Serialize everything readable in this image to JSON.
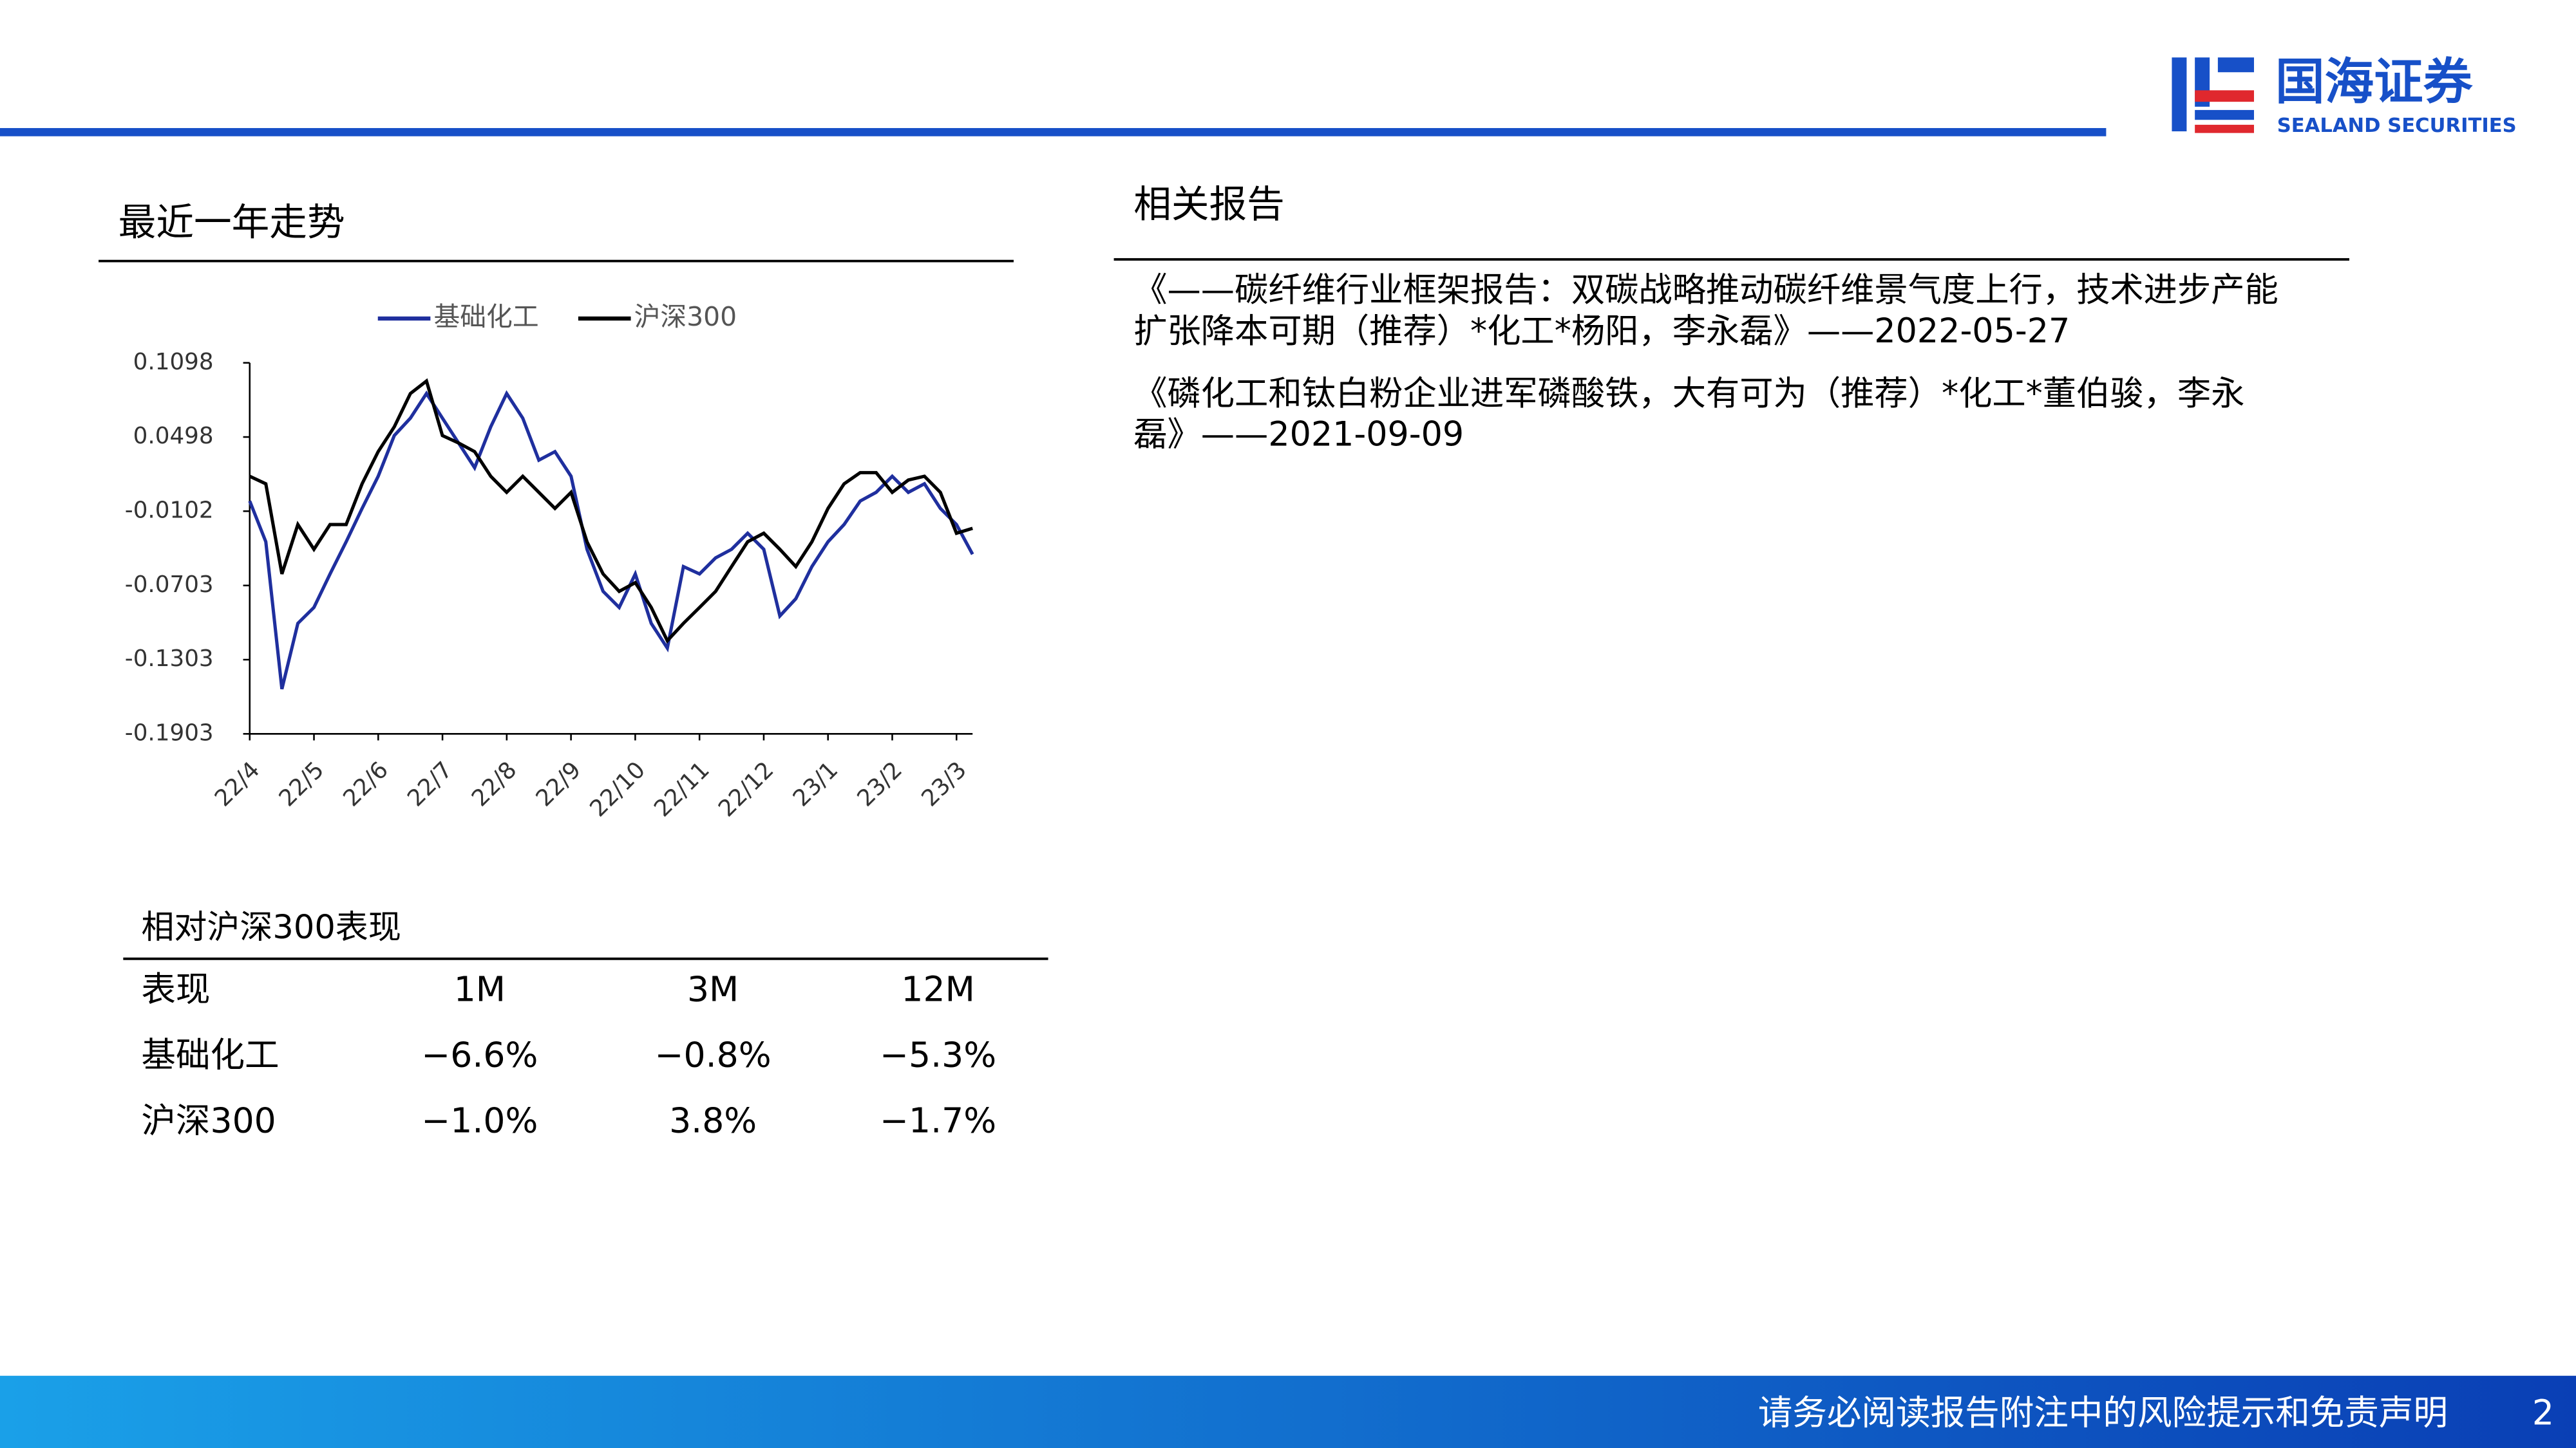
{
  "header": {
    "brand": "国海证券",
    "brand_en": "SEALAND SECURITIES"
  },
  "chart_data": {
    "type": "line",
    "title": "最近一年走势",
    "categories": [
      "22/4",
      null,
      null,
      null,
      "22/5",
      null,
      null,
      null,
      "22/6",
      null,
      null,
      null,
      "22/7",
      null,
      null,
      null,
      "22/8",
      null,
      null,
      null,
      "22/9",
      null,
      null,
      null,
      "22/10",
      null,
      null,
      null,
      "22/11",
      null,
      null,
      null,
      "22/12",
      null,
      null,
      null,
      "23/1",
      null,
      null,
      null,
      "23/2",
      null,
      null,
      null,
      "23/3",
      null
    ],
    "series": [
      {
        "name": "基础化工",
        "color": "#1f2f9e",
        "values": [
          -0.002,
          -0.035,
          -0.154,
          -0.101,
          -0.088,
          -0.061,
          -0.035,
          -0.008,
          0.018,
          0.051,
          0.065,
          0.085,
          0.065,
          0.045,
          0.025,
          0.058,
          0.085,
          0.065,
          0.031,
          0.038,
          0.018,
          -0.041,
          -0.075,
          -0.088,
          -0.061,
          -0.101,
          -0.121,
          -0.055,
          -0.061,
          -0.048,
          -0.041,
          -0.028,
          -0.041,
          -0.095,
          -0.081,
          -0.055,
          -0.035,
          -0.021,
          -0.002,
          0.005,
          0.018,
          0.005,
          0.012,
          -0.008,
          -0.021,
          -0.045
        ]
      },
      {
        "name": "沪深300",
        "color": "#000000",
        "values": [
          0.018,
          0.012,
          -0.061,
          -0.021,
          -0.041,
          -0.021,
          -0.021,
          0.012,
          0.038,
          0.058,
          0.085,
          0.095,
          0.051,
          0.045,
          0.038,
          0.018,
          0.005,
          0.018,
          0.005,
          -0.008,
          0.005,
          -0.035,
          -0.061,
          -0.075,
          -0.068,
          -0.088,
          -0.115,
          -0.101,
          -0.088,
          -0.075,
          -0.055,
          -0.035,
          -0.028,
          -0.041,
          -0.055,
          -0.035,
          -0.008,
          0.012,
          0.021,
          0.021,
          0.005,
          0.015,
          0.018,
          0.005,
          -0.028,
          -0.024
        ]
      }
    ],
    "ylim": [
      -0.1903,
      0.1098
    ],
    "yticks": [
      0.1098,
      0.0498,
      -0.0102,
      -0.0703,
      -0.1303,
      -0.1903
    ],
    "legend": "top"
  },
  "table": {
    "title": "相对沪深300表现",
    "header": [
      "表现",
      "1M",
      "3M",
      "12M"
    ],
    "rows": [
      [
        "基础化工",
        "−6.6%",
        "−0.8%",
        "−5.3%"
      ],
      [
        "沪深300",
        "−1.0%",
        "3.8%",
        "−1.7%"
      ]
    ]
  },
  "reports": {
    "title": "相关报告",
    "items": [
      {
        "lines": [
          "《——碳纤维行业框架报告：双碳战略推动碳纤维景气度上行，技术进步产能",
          "扩张降本可期（推荐）*化工*杨阳，李永磊》——2022-05-27"
        ]
      },
      {
        "lines": [
          "《磷化工和钛白粉企业进军磷酸铁，大有可为（推荐）*化工*董伯骏，李永",
          "磊》——2021-09-09"
        ]
      }
    ]
  },
  "footer": {
    "disclaimer": "请务必阅读报告附注中的风险提示和免责声明",
    "page": "2"
  }
}
